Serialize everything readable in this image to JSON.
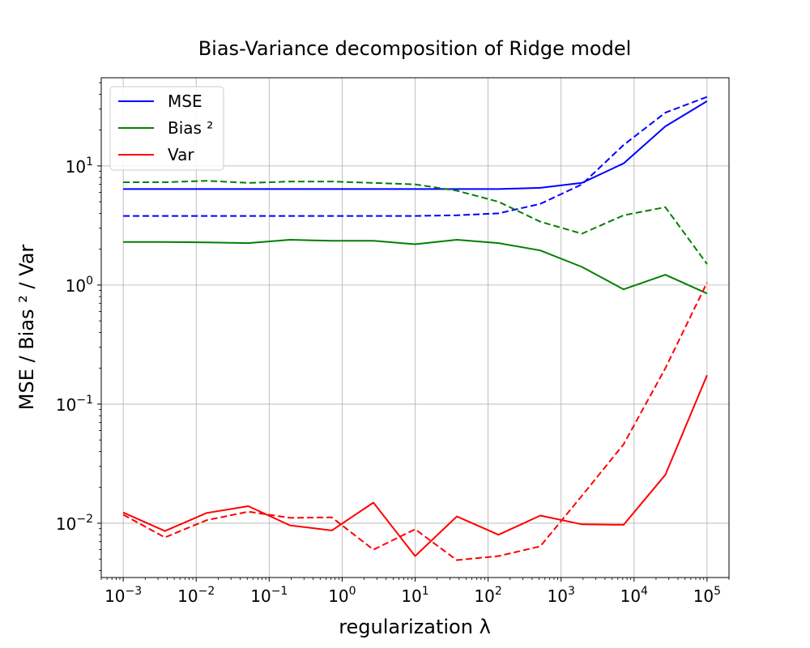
{
  "chart_data": {
    "type": "line",
    "title": "Bias-Variance decomposition of Ridge model",
    "xlabel": "regularization λ",
    "ylabel": "MSE / Bias ² / Var",
    "xscale": "log",
    "yscale": "log",
    "xlim": [
      0.0005,
      200000
    ],
    "ylim": [
      0.0035,
      55
    ],
    "grid": true,
    "legend_position": "top-left",
    "legend": [
      {
        "label": "MSE",
        "color": "#0000ff"
      },
      {
        "label": "Bias ²",
        "color": "#008000"
      },
      {
        "label": "Var",
        "color": "#ff0000"
      }
    ],
    "x_ticks": [
      {
        "base": "10",
        "exp": "−3",
        "value": 0.001
      },
      {
        "base": "10",
        "exp": "−2",
        "value": 0.01
      },
      {
        "base": "10",
        "exp": "−1",
        "value": 0.1
      },
      {
        "base": "10",
        "exp": "0",
        "value": 1
      },
      {
        "base": "10",
        "exp": "1",
        "value": 10
      },
      {
        "base": "10",
        "exp": "2",
        "value": 100
      },
      {
        "base": "10",
        "exp": "3",
        "value": 1000
      },
      {
        "base": "10",
        "exp": "4",
        "value": 10000
      },
      {
        "base": "10",
        "exp": "5",
        "value": 100000
      }
    ],
    "y_ticks": [
      {
        "base": "10",
        "exp": "−2",
        "value": 0.01
      },
      {
        "base": "10",
        "exp": "−1",
        "value": 0.1
      },
      {
        "base": "10",
        "exp": "0",
        "value": 1
      },
      {
        "base": "10",
        "exp": "1",
        "value": 10
      }
    ],
    "x": [
      0.001,
      0.00373,
      0.0139,
      0.0518,
      0.193,
      0.72,
      2.68,
      10.0,
      37.3,
      139,
      518,
      1931,
      7197,
      26827,
      100000
    ],
    "series": [
      {
        "line": "MSE",
        "style": "solid",
        "color": "#0000ff",
        "values": [
          6.4,
          6.4,
          6.4,
          6.4,
          6.4,
          6.4,
          6.4,
          6.4,
          6.4,
          6.4,
          6.55,
          7.2,
          10.5,
          21.5,
          35.0
        ]
      },
      {
        "line": "MSE",
        "style": "dashed",
        "color": "#0000ff",
        "values": [
          3.8,
          3.8,
          3.8,
          3.8,
          3.8,
          3.8,
          3.8,
          3.8,
          3.85,
          4.0,
          4.8,
          7.0,
          15.0,
          28.0,
          38.0
        ]
      },
      {
        "line": "Bias ²",
        "style": "solid",
        "color": "#008000",
        "values": [
          2.3,
          2.3,
          2.28,
          2.25,
          2.4,
          2.35,
          2.35,
          2.2,
          2.4,
          2.25,
          1.95,
          1.42,
          0.92,
          1.22,
          0.85
        ]
      },
      {
        "line": "Bias ²",
        "style": "dashed",
        "color": "#008000",
        "values": [
          7.3,
          7.3,
          7.5,
          7.2,
          7.4,
          7.4,
          7.2,
          7.0,
          6.2,
          5.0,
          3.4,
          2.7,
          3.85,
          4.5,
          1.5
        ]
      },
      {
        "line": "Var",
        "style": "solid",
        "color": "#ff0000",
        "values": [
          0.0123,
          0.0086,
          0.0122,
          0.0139,
          0.0096,
          0.0087,
          0.0149,
          0.0053,
          0.0114,
          0.008,
          0.0116,
          0.0098,
          0.0097,
          0.0255,
          0.175
        ]
      },
      {
        "line": "Var",
        "style": "dashed",
        "color": "#ff0000",
        "values": [
          0.0118,
          0.0076,
          0.0106,
          0.0125,
          0.0111,
          0.0112,
          0.006,
          0.0089,
          0.0049,
          0.0053,
          0.0064,
          0.017,
          0.046,
          0.2,
          1.05
        ]
      }
    ]
  }
}
